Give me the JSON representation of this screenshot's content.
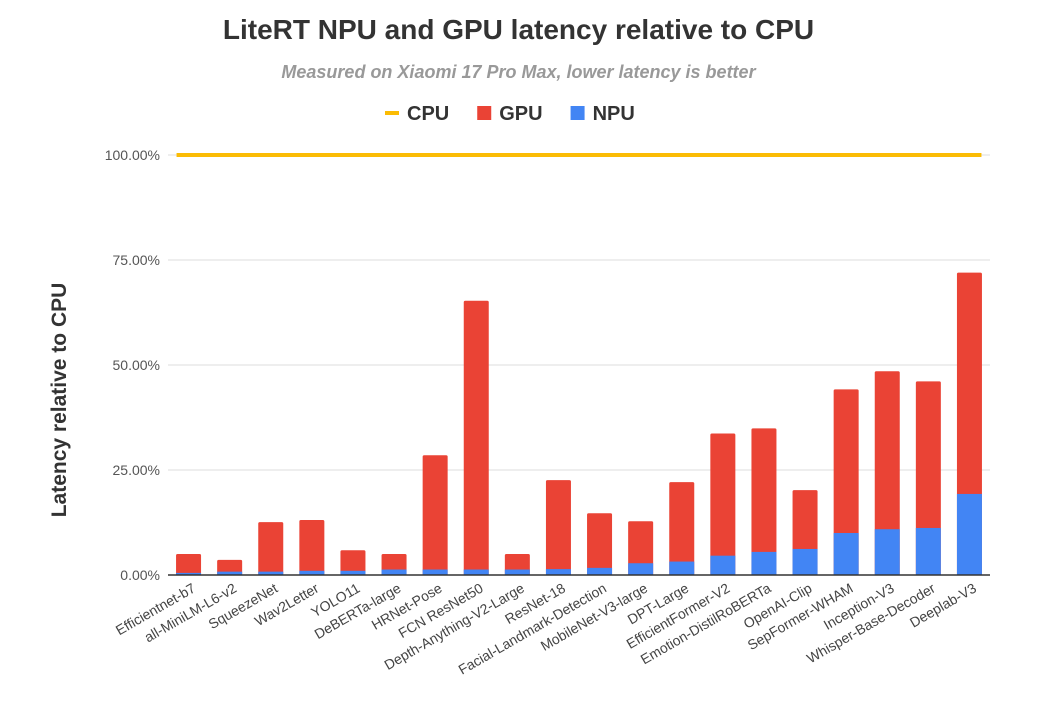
{
  "chart_data": {
    "type": "bar",
    "title": "LiteRT NPU and GPU latency relative to CPU",
    "subtitle": "Measured on Xiaomi 17 Pro Max, lower latency is better",
    "xlabel": "",
    "ylabel": "Latency relative to CPU",
    "ylim": [
      0,
      100
    ],
    "yticks": [
      "0.00%",
      "25.00%",
      "50.00%",
      "75.00%",
      "100.00%"
    ],
    "ytick_values": [
      0,
      25,
      50,
      75,
      100
    ],
    "grid": true,
    "legend_position": "top",
    "categories": [
      "Efficientnet-b7",
      "all-MiniLM-L6-v2",
      "SqueezeNet",
      "Wav2Letter",
      "YOLO11",
      "DeBERTa-large",
      "HRNet-Pose",
      "FCN ResNet50",
      "Depth-Anything-V2-Large",
      "ResNet-18",
      "Facial-Landmark-Detection",
      "MobileNet-V3-large",
      "DPT-Large",
      "EfficientFormer-V2",
      "Emotion-DistilRoBERTa",
      "OpenAI-Clip",
      "SepFormer-WHAM",
      "Inception-V3",
      "Whisper-Base-Decoder",
      "Deeplab-V3"
    ],
    "series": [
      {
        "name": "CPU",
        "type": "line",
        "color": "#fbbc04",
        "values": [
          100,
          100,
          100,
          100,
          100,
          100,
          100,
          100,
          100,
          100,
          100,
          100,
          100,
          100,
          100,
          100,
          100,
          100,
          100,
          100
        ]
      },
      {
        "name": "GPU",
        "type": "bar",
        "color": "#ea4335",
        "values": [
          5.0,
          3.6,
          12.6,
          13.1,
          5.9,
          5.0,
          28.5,
          65.3,
          5.0,
          22.6,
          14.7,
          12.8,
          22.1,
          33.7,
          34.9,
          20.2,
          44.2,
          48.5,
          46.1,
          72.0
        ]
      },
      {
        "name": "NPU",
        "type": "bar",
        "color": "#4285f4",
        "values": [
          0.5,
          0.8,
          0.8,
          1.0,
          1.0,
          1.3,
          1.3,
          1.3,
          1.3,
          1.4,
          1.7,
          2.8,
          3.2,
          4.6,
          5.5,
          6.2,
          10.0,
          10.9,
          11.2,
          19.3
        ]
      }
    ]
  }
}
